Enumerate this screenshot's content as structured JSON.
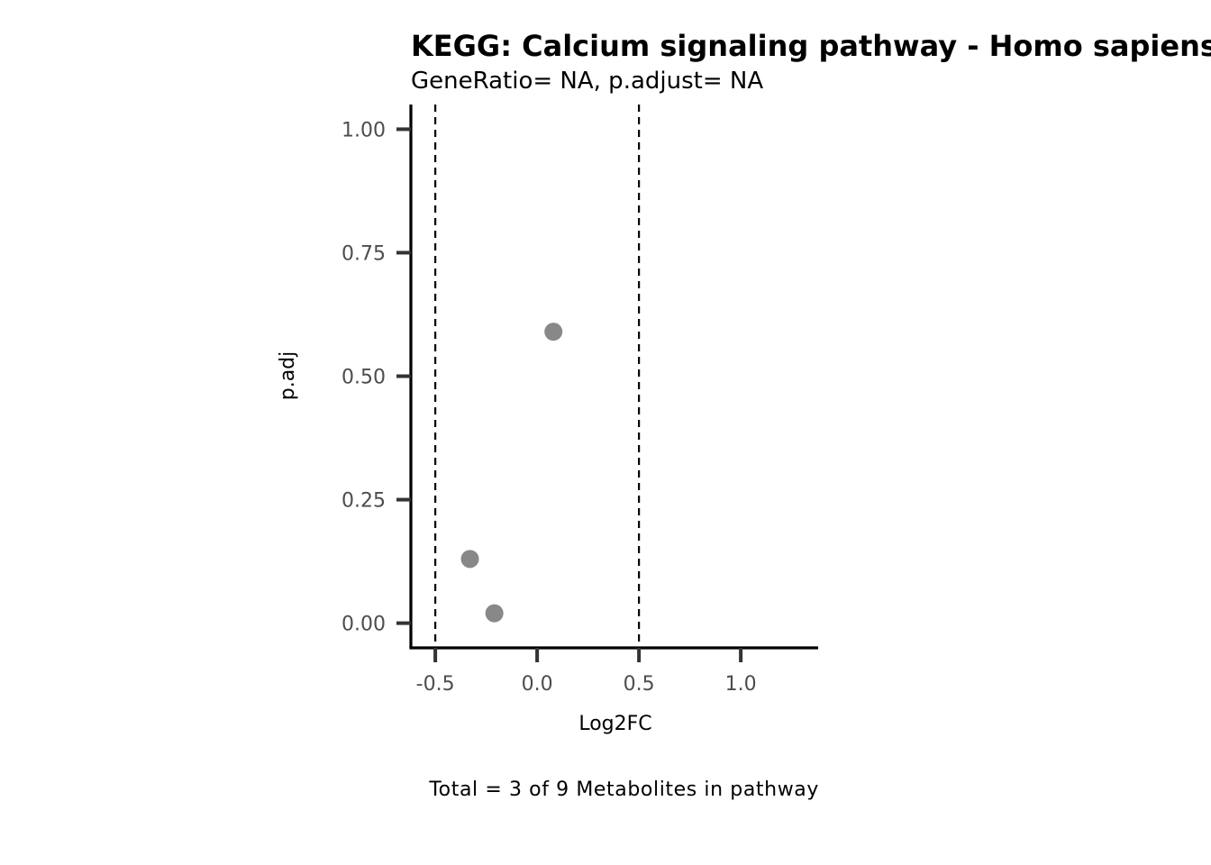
{
  "chart_data": {
    "type": "scatter",
    "title": "KEGG: Calcium signaling pathway - Homo sapiens (human)",
    "subtitle": "GeneRatio= NA, p.adjust= NA",
    "xlabel": "Log2FC",
    "ylabel": "p.adj",
    "caption": "Total = 3 of 9 Metabolites in pathway",
    "xlim": [
      -0.62,
      1.38
    ],
    "ylim": [
      -0.05,
      1.05
    ],
    "x_ticks": [
      -0.5,
      0.0,
      0.5,
      1.0
    ],
    "x_tick_labels": [
      "-0.5",
      "0.0",
      "0.5",
      "1.0"
    ],
    "y_ticks": [
      0.0,
      0.25,
      0.5,
      0.75,
      1.0
    ],
    "y_tick_labels": [
      "0.00",
      "0.25",
      "0.50",
      "0.75",
      "1.00"
    ],
    "vlines": [
      -0.5,
      0.5
    ],
    "grid": false,
    "point_color": "#888888",
    "points": [
      {
        "x": 0.08,
        "y": 0.59
      },
      {
        "x": -0.33,
        "y": 0.13
      },
      {
        "x": -0.21,
        "y": 0.02
      }
    ]
  }
}
